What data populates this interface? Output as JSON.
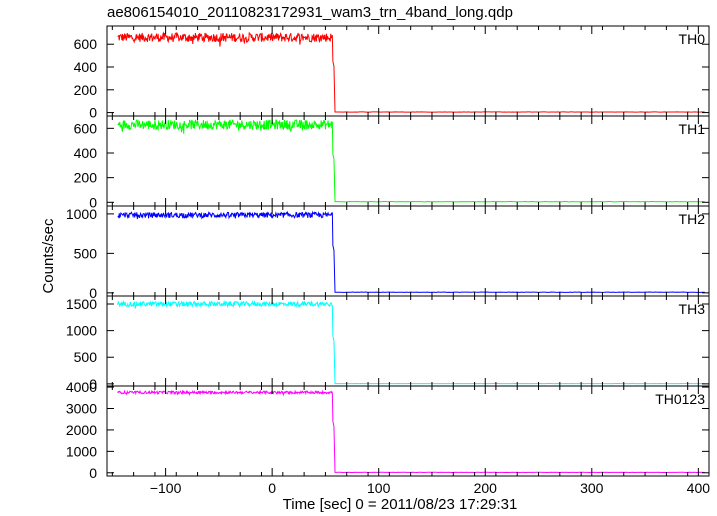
{
  "chart_data": {
    "type": "line",
    "title": "ae806154010_20110823172931_wam3_trn_4band_long.qdp",
    "xlabel": "Time [sec] 0 = 2011/08/23 17:29:31",
    "ylabel": "Counts/sec",
    "xlim": [
      -155,
      410
    ],
    "x_ticks": [
      "−100",
      "0",
      "100",
      "200",
      "300",
      "400"
    ],
    "x_tick_values": [
      -100,
      0,
      100,
      200,
      300,
      400
    ],
    "transition_x": 57,
    "x_end": 406,
    "panels": [
      {
        "name": "TH0",
        "color": "#ff0000",
        "ylim": [
          -30,
          760
        ],
        "yticks": [
          0,
          200,
          400,
          600
        ],
        "level_before": 660,
        "noise": 40,
        "level_drop": 450,
        "level_after": 5
      },
      {
        "name": "TH1",
        "color": "#00ff00",
        "ylim": [
          -30,
          700
        ],
        "yticks": [
          0,
          200,
          400,
          600
        ],
        "level_before": 630,
        "noise": 40,
        "level_drop": 390,
        "level_after": 5
      },
      {
        "name": "TH2",
        "color": "#0000ff",
        "ylim": [
          -40,
          1100
        ],
        "yticks": [
          0,
          500,
          1000
        ],
        "level_before": 985,
        "noise": 35,
        "level_drop": 600,
        "level_after": 8
      },
      {
        "name": "TH3",
        "color": "#00ffff",
        "ylim": [
          -40,
          1650
        ],
        "yticks": [
          0,
          500,
          1000,
          1500
        ],
        "level_before": 1500,
        "noise": 45,
        "level_drop": 900,
        "level_after": 5
      },
      {
        "name": "TH0123",
        "color": "#ff00ff",
        "ylim": [
          -150,
          4050
        ],
        "yticks": [
          0,
          1000,
          2000,
          3000,
          4000
        ],
        "level_before": 3750,
        "noise": 60,
        "level_drop": 2400,
        "level_after": 20
      }
    ]
  }
}
